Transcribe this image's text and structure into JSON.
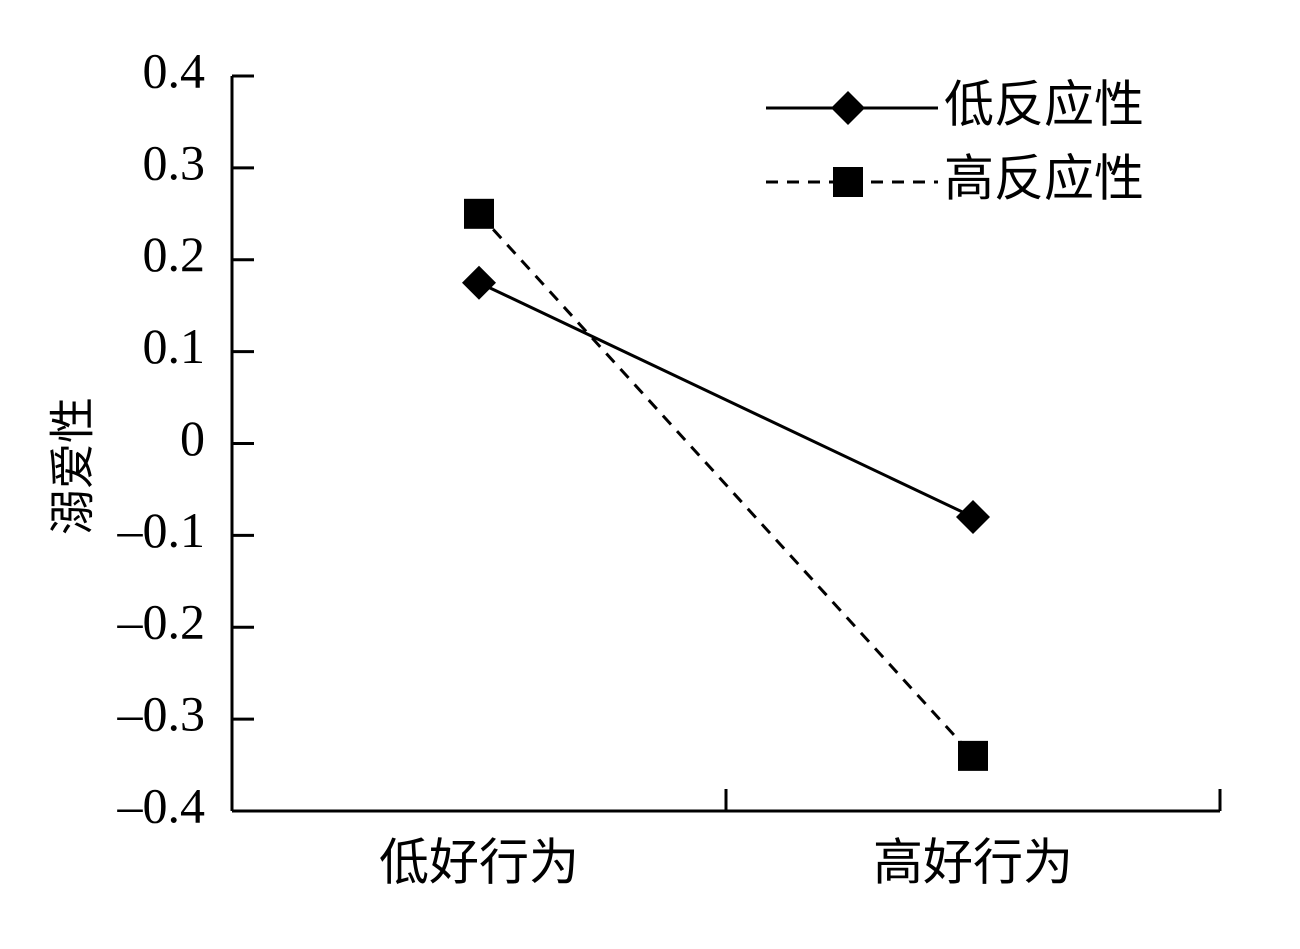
{
  "chart_data": {
    "type": "line",
    "title": "",
    "xlabel": "",
    "ylabel": "溺爱性",
    "categories": [
      "低好行为",
      "高好行为"
    ],
    "ylim": [
      -0.4,
      0.4
    ],
    "yticks": [
      0.4,
      0.3,
      0.2,
      0.1,
      0,
      -0.1,
      -0.2,
      -0.3,
      -0.4
    ],
    "ytick_labels": [
      "0.4",
      "0.3",
      "0.2",
      "0.1",
      "0",
      "–0.1",
      "–0.2",
      "–0.3",
      "–0.4"
    ],
    "grid": false,
    "legend_position": "top-right",
    "series": [
      {
        "name": "低反应性",
        "values": [
          0.175,
          -0.08
        ],
        "marker": "diamond",
        "line": "solid",
        "color": "#000000"
      },
      {
        "name": "高反应性",
        "values": [
          0.25,
          -0.34
        ],
        "marker": "square",
        "line": "dashed",
        "color": "#000000"
      }
    ]
  }
}
